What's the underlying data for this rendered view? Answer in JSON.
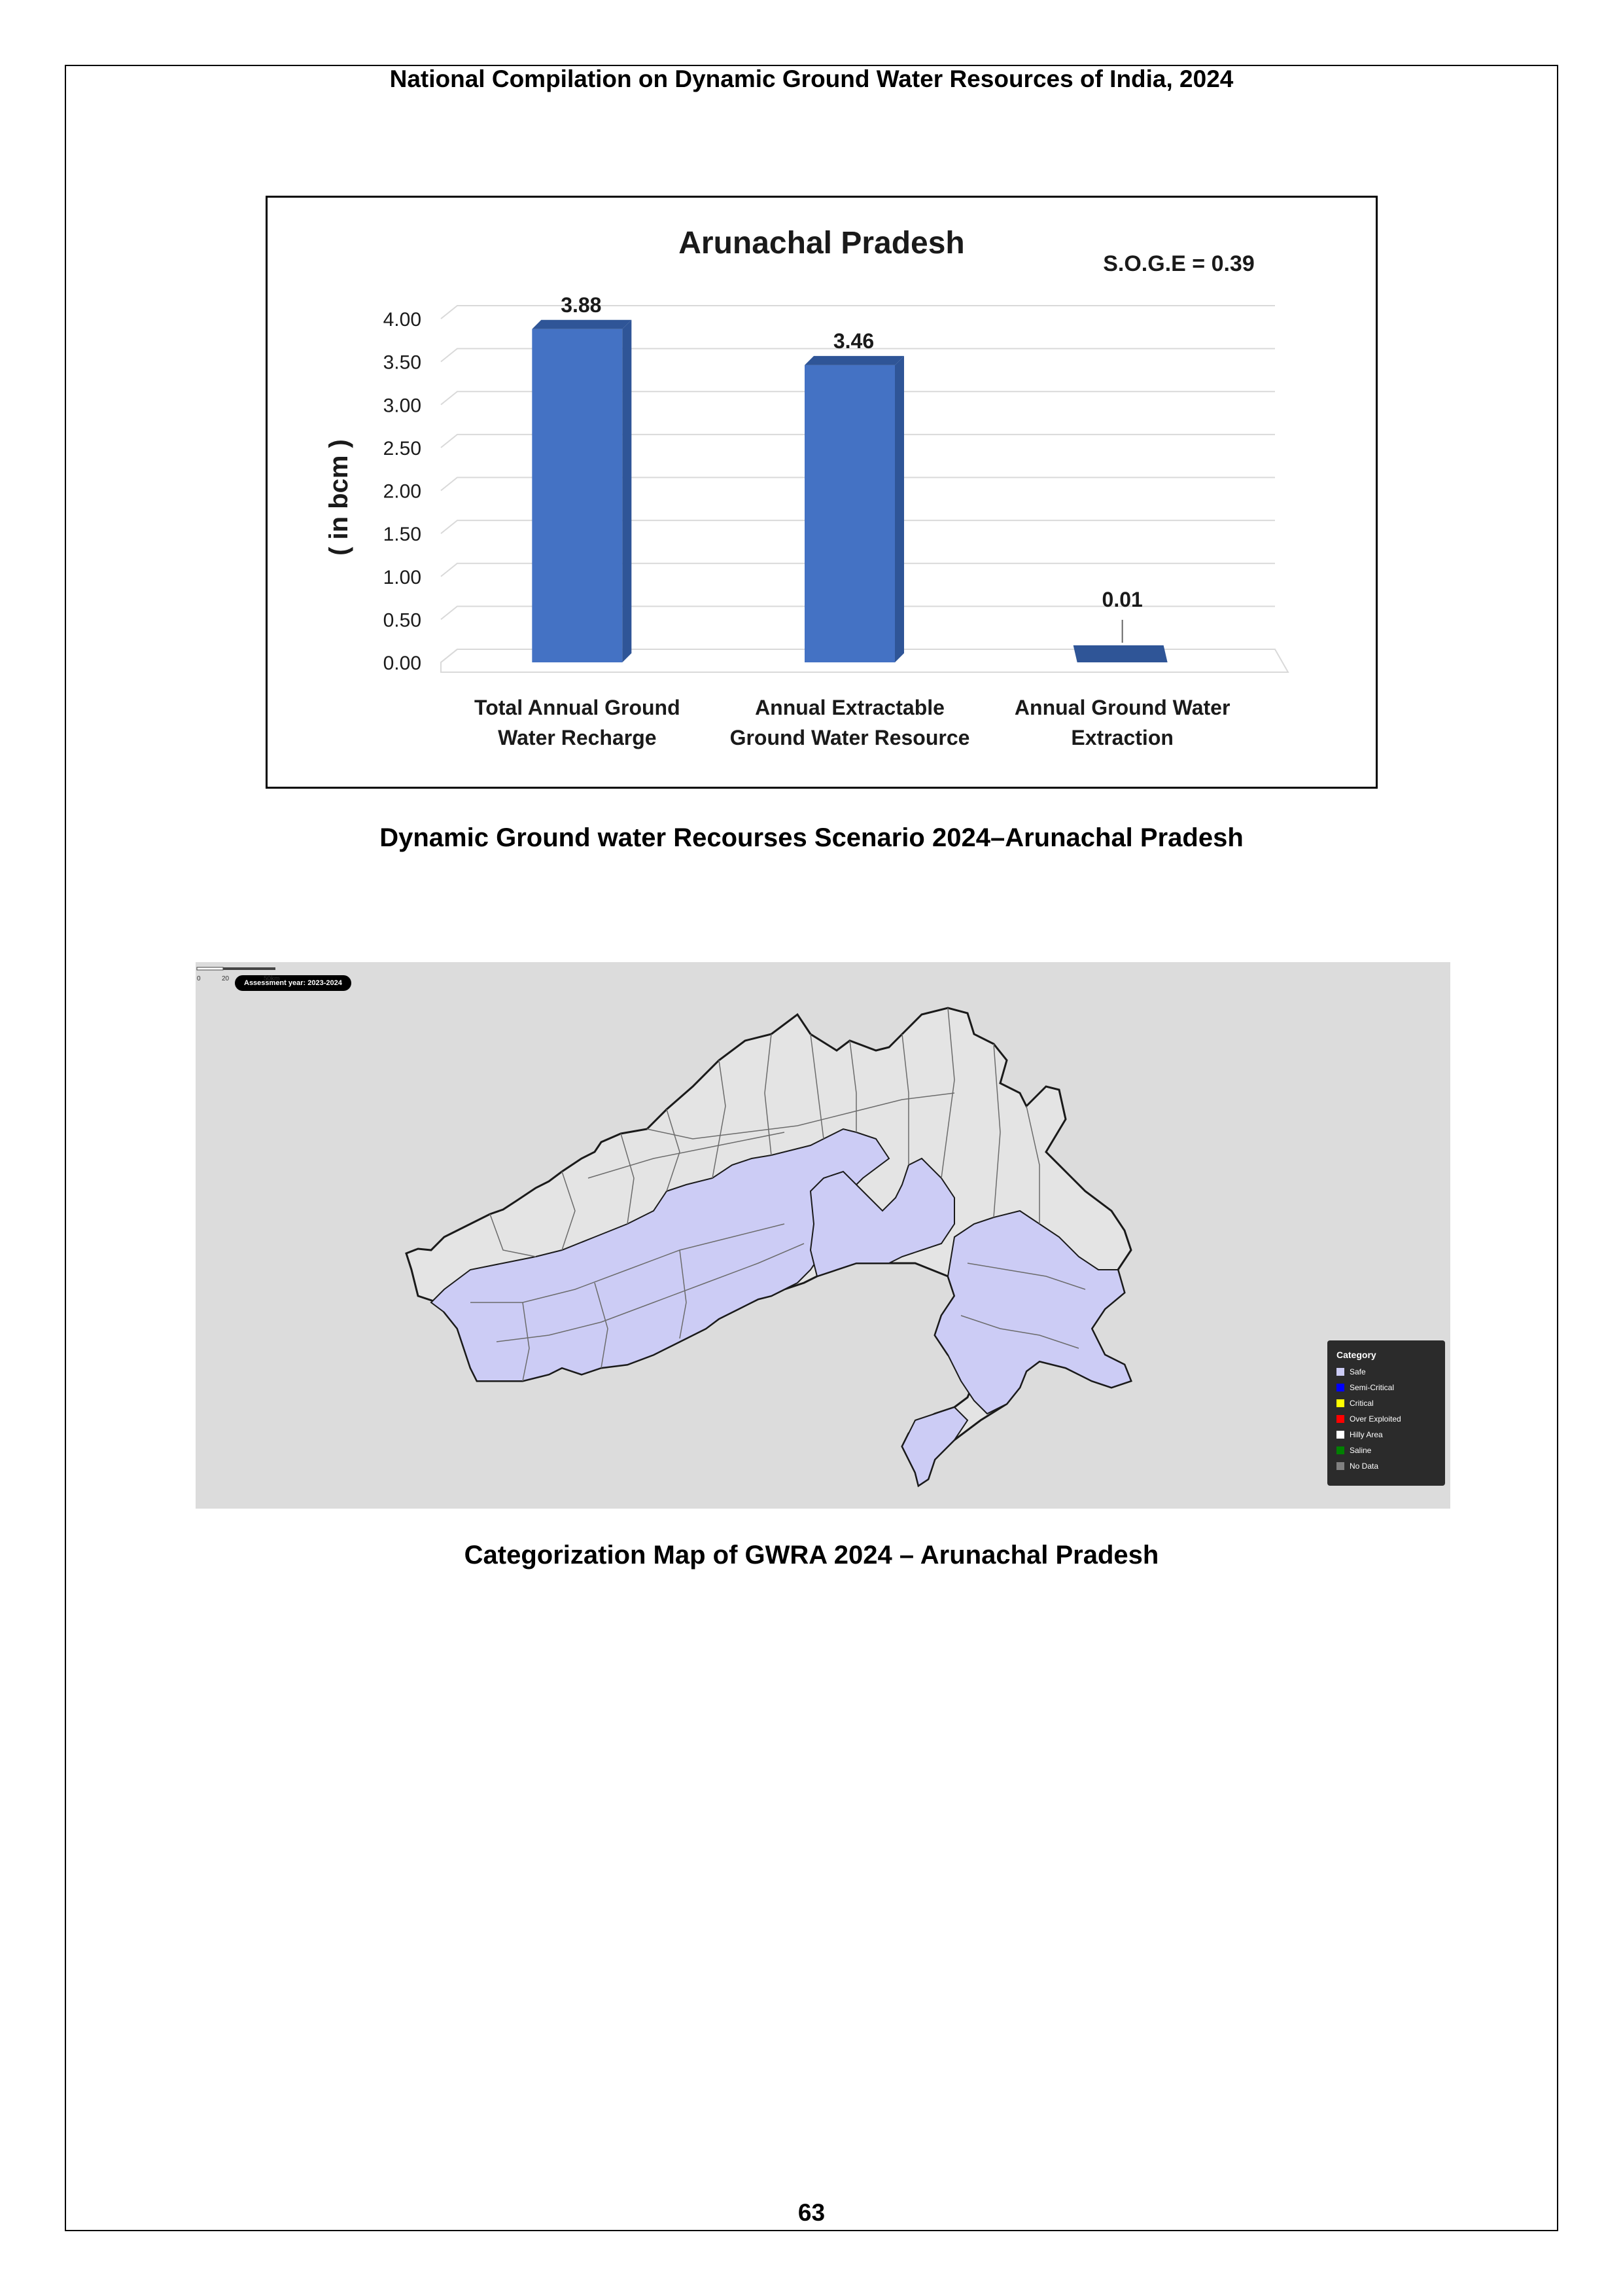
{
  "header": {
    "running_title": "National Compilation on Dynamic Ground Water Resources of India, 2024"
  },
  "chart_data": {
    "type": "bar",
    "title": "Arunachal Pradesh",
    "annotation": "S.O.G.E = 0.39",
    "ylabel": "( in bcm )",
    "xlabel": "",
    "ylim": [
      0,
      4.0
    ],
    "yticks": [
      "0.00",
      "0.50",
      "1.00",
      "1.50",
      "2.00",
      "2.50",
      "3.00",
      "3.50",
      "4.00"
    ],
    "grid": true,
    "categories": [
      [
        "Total Annual  Ground",
        "Water Recharge"
      ],
      [
        "Annual Extractable",
        "Ground Water Resource"
      ],
      [
        "Annual Ground Water",
        "Extraction"
      ]
    ],
    "values": [
      3.88,
      3.46,
      0.01
    ],
    "value_labels": [
      "3.88",
      "3.46",
      "0.01"
    ],
    "colors": {
      "bar": "#4472c4",
      "bar_top": "#2f5597",
      "grid": "#d9d9d9"
    }
  },
  "chart_caption": "Dynamic Ground water Recourses Scenario 2024–Arunachal Pradesh",
  "map": {
    "assessment_label": "Assessment year: 2023-2024",
    "legend": {
      "title": "Category",
      "items": [
        {
          "label": "Safe",
          "color": "#ccccf5"
        },
        {
          "label": "Semi-Critical",
          "color": "#0000ff"
        },
        {
          "label": "Critical",
          "color": "#ffff00"
        },
        {
          "label": "Over Exploited",
          "color": "#ff0000"
        },
        {
          "label": "Hilly Area",
          "color": "#ffffff"
        },
        {
          "label": "Saline",
          "color": "#008000"
        },
        {
          "label": "No Data",
          "color": "#808080"
        }
      ]
    },
    "scale": {
      "ticks": [
        "0",
        "20",
        "50km"
      ]
    },
    "colors": {
      "background": "#dcdcdc",
      "hilly": "#e4e4e4",
      "safe": "#ccccf5"
    }
  },
  "map_caption": "Categorization Map of GWRA 2024 – Arunachal Pradesh",
  "footer": {
    "page_number": "63"
  }
}
